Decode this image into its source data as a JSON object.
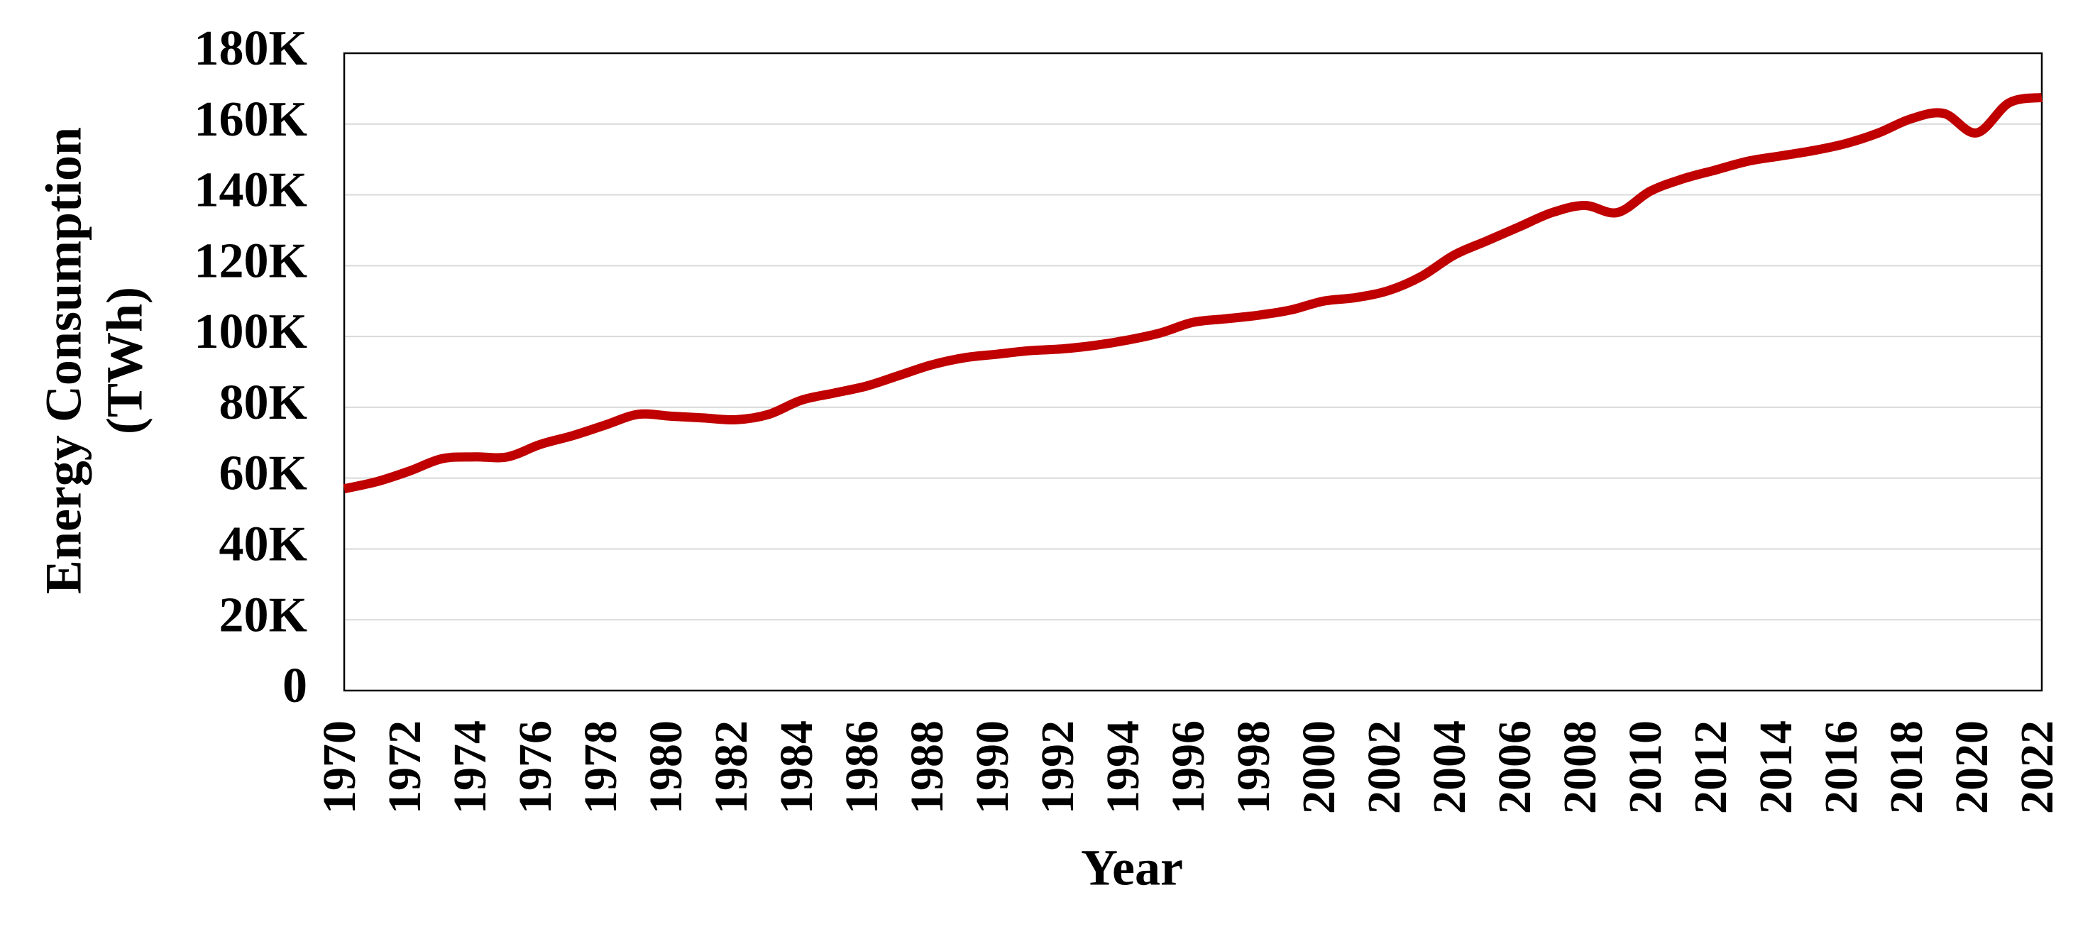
{
  "chart_data": {
    "type": "line",
    "ylabel": [
      "Energy Consumption",
      "(TWh)"
    ],
    "xlabel": "Year",
    "x": [
      1970,
      1971,
      1972,
      1973,
      1974,
      1975,
      1976,
      1977,
      1978,
      1979,
      1980,
      1981,
      1982,
      1983,
      1984,
      1985,
      1986,
      1987,
      1988,
      1989,
      1990,
      1991,
      1992,
      1993,
      1994,
      1995,
      1996,
      1997,
      1998,
      1999,
      2000,
      2001,
      2002,
      2003,
      2004,
      2005,
      2006,
      2007,
      2008,
      2009,
      2010,
      2011,
      2012,
      2013,
      2014,
      2015,
      2016,
      2017,
      2018,
      2019,
      2020,
      2021,
      2022
    ],
    "series": [
      {
        "color": "#c00000",
        "values": [
          57000,
          59000,
          62000,
          65500,
          66000,
          66000,
          69500,
          72000,
          75000,
          78000,
          77500,
          77000,
          76500,
          78000,
          82000,
          84000,
          86000,
          89000,
          92000,
          94000,
          95000,
          96000,
          96500,
          97500,
          99000,
          101000,
          104000,
          105000,
          106000,
          107500,
          110000,
          111000,
          113000,
          117000,
          123000,
          127000,
          131000,
          135000,
          137000,
          135000,
          141000,
          144500,
          147000,
          149500,
          151000,
          152500,
          154500,
          157500,
          161500,
          163000,
          157500,
          166000,
          167500
        ]
      }
    ],
    "xlim": [
      1970,
      2022
    ],
    "xticks": [
      1970,
      1972,
      1974,
      1976,
      1978,
      1980,
      1982,
      1984,
      1986,
      1988,
      1990,
      1992,
      1994,
      1996,
      1998,
      2000,
      2002,
      2004,
      2006,
      2008,
      2010,
      2012,
      2014,
      2016,
      2018,
      2020,
      2022
    ],
    "ylim": [
      0,
      180000
    ],
    "yticks": [
      0,
      {
        "value": 20000,
        "label": "20K"
      },
      {
        "value": 40000,
        "label": "40K"
      },
      {
        "value": 60000,
        "label": "60K"
      },
      {
        "value": 80000,
        "label": "80K"
      },
      {
        "value": 100000,
        "label": "100K"
      },
      {
        "value": 120000,
        "label": "120K"
      },
      {
        "value": 140000,
        "label": "140K"
      },
      {
        "value": 160000,
        "label": "160K"
      },
      {
        "value": 180000,
        "label": "180K"
      }
    ],
    "grid": true
  }
}
